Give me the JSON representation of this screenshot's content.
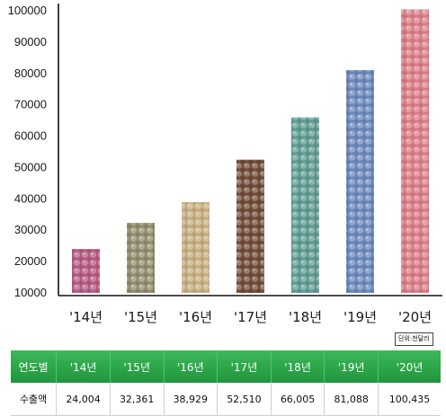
{
  "chart_data": {
    "type": "bar",
    "categories": [
      "'14년",
      "'15년",
      "'16년",
      "'17년",
      "'18년",
      "'19년",
      "'20년"
    ],
    "values": [
      24004,
      32361,
      38929,
      52510,
      66005,
      81088,
      100435
    ],
    "y_ticks": [
      "100000",
      "90000",
      "80000",
      "70000",
      "60000",
      "50000",
      "40000",
      "30000",
      "20000",
      "10000"
    ],
    "ylim": [
      10000,
      100000
    ],
    "unit": "단위:천달러",
    "bar_fill_colors": [
      "#b35a80",
      "#8f8a6a",
      "#c4ab7e",
      "#6e4a38",
      "#5e9a90",
      "#6a86b8",
      "#d77c86"
    ],
    "title": "",
    "xlabel": "",
    "ylabel": ""
  },
  "table": {
    "row_header": "연도별",
    "row_label": "수출액",
    "years": [
      "'14년",
      "'15년",
      "'16년",
      "'17년",
      "'18년",
      "'19년",
      "'20년"
    ],
    "values": [
      "24,004",
      "32,361",
      "38,929",
      "52,510",
      "66,005",
      "81,088",
      "100,435"
    ],
    "header_color": "#2aa147"
  }
}
